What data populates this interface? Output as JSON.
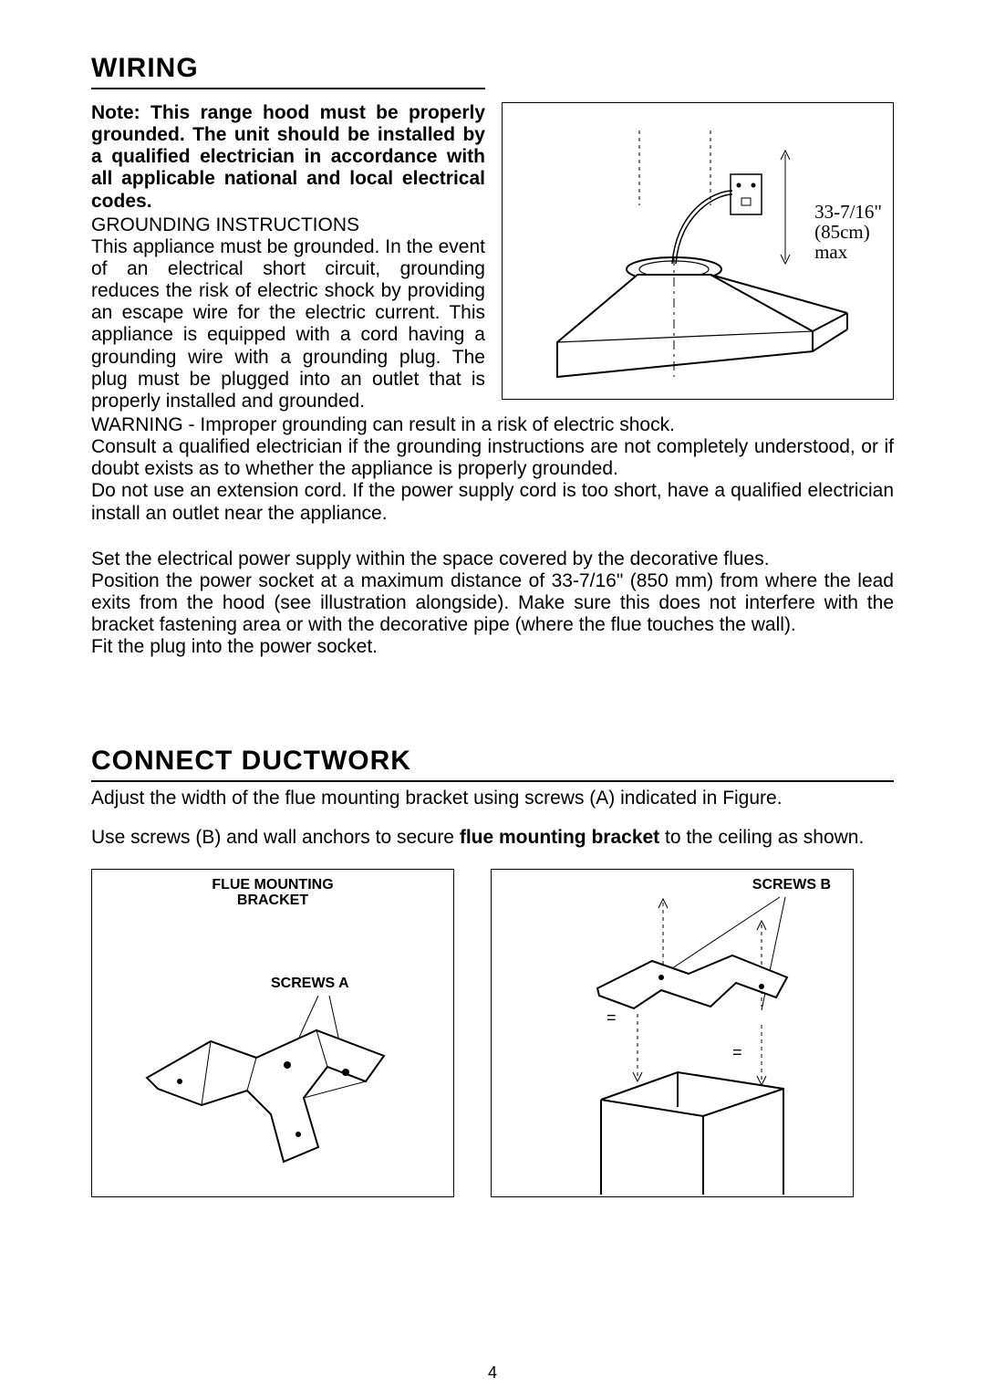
{
  "page_number": "4",
  "wiring": {
    "title": "WIRING",
    "note": "Note: This range hood must be properly grounded. The unit should be installed by a qualified electrician in accordance with all applicable national and local electrical codes.",
    "grounding_heading": "GROUNDING INSTRUCTIONS",
    "grounding_body": "This appliance must be grounded. In the event of an electrical short circuit, grounding reduces the risk of electric shock by providing an escape wire for the electric current. This appliance is equipped with a cord having a grounding wire with a grounding plug. The plug must be plugged into an outlet that is properly installed and grounded.",
    "warning": "WARNING - Improper grounding can result in a risk of electric shock.",
    "consult": "Consult a qualified electrician if the grounding instructions are not completely understood, or if doubt exists as to whether the appliance is properly grounded.",
    "no_extension": "Do not use an extension cord. If the power supply cord is too short, have a qualified electrician install an outlet near the appliance.",
    "set_supply": "Set the electrical power supply within the space covered by the decorative flues.",
    "position_socket": "Position the power socket at a maximum distance of 33-7/16\" (850 mm) from where the lead exits from the hood (see illustration alongside). Make sure this does not interfere with the bracket fastening area or with the decorative pipe (where the flue touches the wall).",
    "fit_plug": "Fit the plug into the power socket.",
    "figure": {
      "dim_line1": "33-7/16\"",
      "dim_line2": "(85cm)",
      "dim_line3": "max",
      "border_color": "#000000",
      "stroke_color": "#000000",
      "dash_color": "#000000"
    }
  },
  "ductwork": {
    "title": "CONNECT  DUCTWORK",
    "adjust_text": "Adjust the width of the flue mounting bracket using screws (A) indicated in Figure.",
    "use_screws_pre": "Use screws (B) and wall anchors to secure ",
    "use_screws_bold": "flue mounting bracket",
    "use_screws_post": " to the ceiling as shown.",
    "fig1": {
      "label_top": "FLUE MOUNTING\nBRACKET",
      "label_screws": "SCREWS A"
    },
    "fig2": {
      "label_screws": "SCREWS B"
    }
  },
  "colors": {
    "text": "#000000",
    "rule": "#000000",
    "background": "#ffffff"
  }
}
